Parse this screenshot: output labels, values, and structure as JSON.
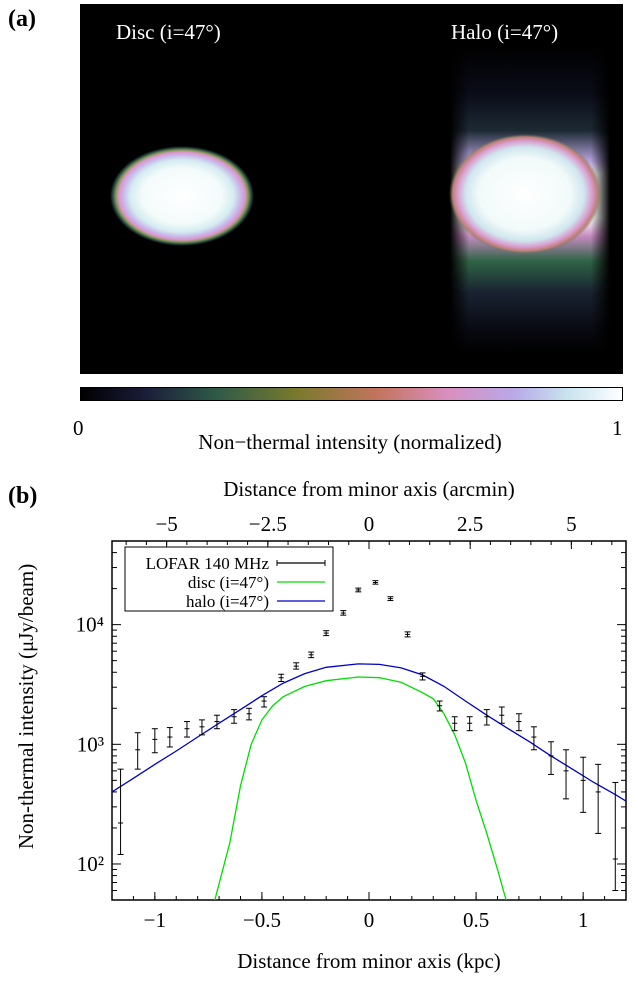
{
  "panel_a": {
    "label": "(a)",
    "image_titles": [
      "Disc (i=47°)",
      "Halo (i=47°)"
    ],
    "colorbar": {
      "min_label": "0",
      "max_label": "1",
      "label": "Non−thermal intensity (normalized)",
      "colors": [
        "#000000",
        "#1b1d3a",
        "#2e5a48",
        "#7a7a2c",
        "#c4745e",
        "#d98fc0",
        "#b9a8e8",
        "#c8e4ef",
        "#ffffff"
      ]
    }
  },
  "panel_b": {
    "label": "(b)",
    "legend": [
      "LOFAR 140 MHz",
      "disc (i=47°)",
      "halo (i=47°)"
    ]
  },
  "chart_data": [
    {
      "type": "heatmap",
      "panel": "(a)",
      "title": "Disc (i=47°)",
      "value_range": [
        0,
        1
      ]
    },
    {
      "type": "heatmap",
      "panel": "(a)",
      "title": "Halo (i=47°)",
      "value_range": [
        0,
        1
      ]
    },
    {
      "type": "line",
      "panel": "(b)",
      "xlabel": "Distance from minor axis (kpc)",
      "x2label": "Distance from minor axis (arcmin)",
      "ylabel": "Non-thermal intensity (μJy/beam)",
      "xlim": [
        -1.2,
        1.2
      ],
      "x2lim": [
        -6.35,
        6.35
      ],
      "ylim": [
        50,
        50000
      ],
      "yscale": "log",
      "xticks": [
        -1,
        -0.5,
        0,
        0.5,
        1
      ],
      "xtick_labels": [
        "-1",
        "-0.5",
        "0",
        "0.5",
        "1"
      ],
      "x2ticks": [
        -5,
        -2.5,
        0,
        2.5,
        5
      ],
      "x2tick_labels": [
        "-5",
        "-2.5",
        "0",
        "2.5",
        "5"
      ],
      "yticks": [
        100,
        1000,
        10000
      ],
      "ytick_labels": [
        "10²",
        "10³",
        "10⁴"
      ],
      "legend_position": "top-left",
      "series": [
        {
          "name": "LOFAR 140 MHz",
          "kind": "errorbar",
          "color": "#000000",
          "points": [
            {
              "x": -1.16,
              "y": 220,
              "lo": 120,
              "hi": 620
            },
            {
              "x": -1.08,
              "y": 900,
              "lo": 620,
              "hi": 1250
            },
            {
              "x": -1.0,
              "y": 1100,
              "lo": 850,
              "hi": 1350
            },
            {
              "x": -0.93,
              "y": 1150,
              "lo": 950,
              "hi": 1380
            },
            {
              "x": -0.85,
              "y": 1350,
              "lo": 1150,
              "hi": 1550
            },
            {
              "x": -0.78,
              "y": 1400,
              "lo": 1200,
              "hi": 1600
            },
            {
              "x": -0.71,
              "y": 1550,
              "lo": 1350,
              "hi": 1750
            },
            {
              "x": -0.63,
              "y": 1700,
              "lo": 1500,
              "hi": 1950
            },
            {
              "x": -0.56,
              "y": 1800,
              "lo": 1600,
              "hi": 2000
            },
            {
              "x": -0.49,
              "y": 2300,
              "lo": 2050,
              "hi": 2500
            },
            {
              "x": -0.41,
              "y": 3600,
              "lo": 3350,
              "hi": 3850
            },
            {
              "x": -0.34,
              "y": 4500,
              "lo": 4250,
              "hi": 4800
            },
            {
              "x": -0.27,
              "y": 5600,
              "lo": 5300,
              "hi": 5900
            },
            {
              "x": -0.2,
              "y": 8500,
              "lo": 8100,
              "hi": 8900
            },
            {
              "x": -0.12,
              "y": 12500,
              "lo": 12000,
              "hi": 13100
            },
            {
              "x": -0.05,
              "y": 19500,
              "lo": 18800,
              "hi": 20200
            },
            {
              "x": 0.03,
              "y": 22500,
              "lo": 21800,
              "hi": 23300
            },
            {
              "x": 0.1,
              "y": 16500,
              "lo": 15900,
              "hi": 17100
            },
            {
              "x": 0.18,
              "y": 8300,
              "lo": 7900,
              "hi": 8700
            },
            {
              "x": 0.25,
              "y": 3700,
              "lo": 3450,
              "hi": 3950
            },
            {
              "x": 0.33,
              "y": 2100,
              "lo": 1900,
              "hi": 2300
            },
            {
              "x": 0.4,
              "y": 1500,
              "lo": 1300,
              "hi": 1700
            },
            {
              "x": 0.47,
              "y": 1500,
              "lo": 1300,
              "hi": 1700
            },
            {
              "x": 0.55,
              "y": 1700,
              "lo": 1450,
              "hi": 1950
            },
            {
              "x": 0.62,
              "y": 1750,
              "lo": 1500,
              "hi": 2050
            },
            {
              "x": 0.7,
              "y": 1550,
              "lo": 1300,
              "hi": 1800
            },
            {
              "x": 0.77,
              "y": 1150,
              "lo": 900,
              "hi": 1400
            },
            {
              "x": 0.85,
              "y": 800,
              "lo": 560,
              "hi": 1050
            },
            {
              "x": 0.92,
              "y": 600,
              "lo": 350,
              "hi": 900
            },
            {
              "x": 1.0,
              "y": 500,
              "lo": 270,
              "hi": 780
            },
            {
              "x": 1.07,
              "y": 400,
              "lo": 180,
              "hi": 680
            },
            {
              "x": 1.15,
              "y": 110,
              "lo": 60,
              "hi": 480
            }
          ]
        },
        {
          "name": "disc (i=47°)",
          "kind": "line",
          "color": "#00dd00",
          "points": [
            {
              "x": -0.72,
              "y": 50
            },
            {
              "x": -0.65,
              "y": 150
            },
            {
              "x": -0.6,
              "y": 450
            },
            {
              "x": -0.55,
              "y": 1000
            },
            {
              "x": -0.5,
              "y": 1600
            },
            {
              "x": -0.45,
              "y": 2100
            },
            {
              "x": -0.4,
              "y": 2500
            },
            {
              "x": -0.3,
              "y": 3050
            },
            {
              "x": -0.2,
              "y": 3400
            },
            {
              "x": -0.05,
              "y": 3650
            },
            {
              "x": 0.05,
              "y": 3600
            },
            {
              "x": 0.15,
              "y": 3300
            },
            {
              "x": 0.25,
              "y": 2700
            },
            {
              "x": 0.3,
              "y": 2400
            },
            {
              "x": 0.35,
              "y": 1800
            },
            {
              "x": 0.4,
              "y": 1200
            },
            {
              "x": 0.45,
              "y": 700
            },
            {
              "x": 0.5,
              "y": 340
            },
            {
              "x": 0.55,
              "y": 180
            },
            {
              "x": 0.6,
              "y": 90
            },
            {
              "x": 0.64,
              "y": 50
            }
          ]
        },
        {
          "name": "halo (i=47°)",
          "kind": "line",
          "color": "#0000cc",
          "points": [
            {
              "x": -1.2,
              "y": 400
            },
            {
              "x": -1.1,
              "y": 520
            },
            {
              "x": -1.0,
              "y": 680
            },
            {
              "x": -0.9,
              "y": 880
            },
            {
              "x": -0.8,
              "y": 1150
            },
            {
              "x": -0.7,
              "y": 1500
            },
            {
              "x": -0.6,
              "y": 1950
            },
            {
              "x": -0.5,
              "y": 2550
            },
            {
              "x": -0.4,
              "y": 3250
            },
            {
              "x": -0.3,
              "y": 3900
            },
            {
              "x": -0.2,
              "y": 4400
            },
            {
              "x": -0.05,
              "y": 4700
            },
            {
              "x": 0.05,
              "y": 4650
            },
            {
              "x": 0.15,
              "y": 4350
            },
            {
              "x": 0.25,
              "y": 3800
            },
            {
              "x": 0.35,
              "y": 3050
            },
            {
              "x": 0.45,
              "y": 2300
            },
            {
              "x": 0.55,
              "y": 1750
            },
            {
              "x": 0.65,
              "y": 1350
            },
            {
              "x": 0.75,
              "y": 1050
            },
            {
              "x": 0.85,
              "y": 800
            },
            {
              "x": 0.95,
              "y": 620
            },
            {
              "x": 1.05,
              "y": 480
            },
            {
              "x": 1.15,
              "y": 380
            },
            {
              "x": 1.2,
              "y": 335
            }
          ]
        }
      ]
    }
  ]
}
